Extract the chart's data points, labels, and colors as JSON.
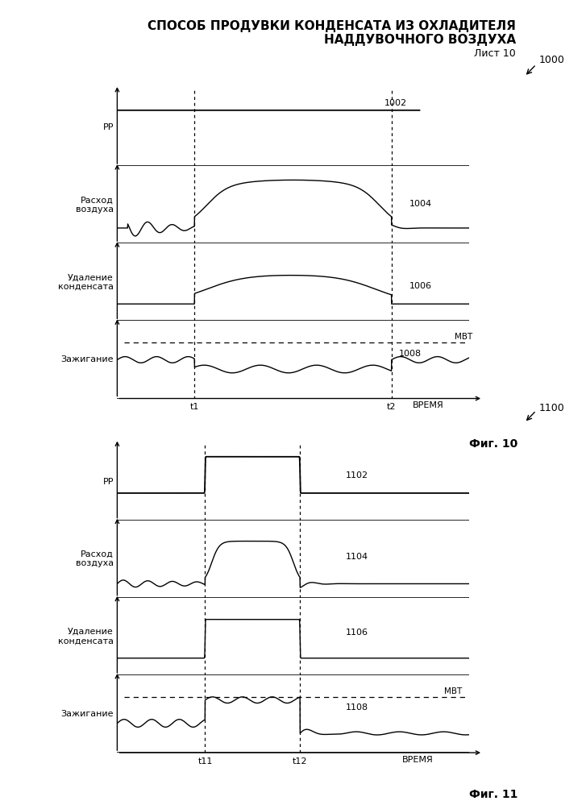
{
  "title_line1": "СПОСОБ ПРОДУВКИ КОНДЕНСАТА ИЗ ОХЛАДИТЕЛЯ",
  "title_line2": "НАДДУВОЧНОГО ВОЗДУХА",
  "sheet_label": "Лист 10",
  "fig10_label": "Фиг. 10",
  "fig11_label": "Фиг. 11",
  "ref_1000": "1000",
  "ref_1100": "1100",
  "fig10": {
    "ylabels": [
      "PP",
      "Расход\nвоздуха",
      "Удаление\nконденсата",
      "Зажигание"
    ],
    "xlabel": "ВРЕМЯ",
    "t1_label": "t1",
    "t2_label": "t2",
    "refs": [
      "1002",
      "1004",
      "1006",
      "1008"
    ],
    "mbt_label": "МВТ",
    "t1": 2.2,
    "t2": 7.8
  },
  "fig11": {
    "ylabels": [
      "PP",
      "Расход\nвоздуха",
      "Удаление\nконденсата",
      "Зажигание"
    ],
    "xlabel": "ВРЕМЯ",
    "t1_label": "t11",
    "t2_label": "t12",
    "refs": [
      "1102",
      "1104",
      "1106",
      "1108"
    ],
    "mbt_label": "МВТ",
    "t1": 2.5,
    "t2": 5.2
  },
  "font_color": "#000000",
  "background_color": "#ffffff"
}
